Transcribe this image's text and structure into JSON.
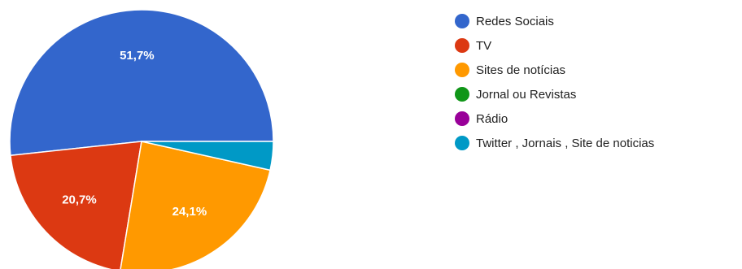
{
  "chart_data": {
    "type": "pie",
    "legend_position": "right",
    "slices": [
      {
        "label": "Redes Sociais",
        "value": 51.7,
        "value_label": "51,7%",
        "color": "#3366cc"
      },
      {
        "label": "TV",
        "value": 20.7,
        "value_label": "20,7%",
        "color": "#dc3912"
      },
      {
        "label": "Sites de notícias",
        "value": 24.1,
        "value_label": "24,1%",
        "color": "#ff9900"
      },
      {
        "label": "Jornal ou Revistas",
        "value": 0,
        "value_label": "",
        "color": "#109618"
      },
      {
        "label": "Rádio",
        "value": 0,
        "value_label": "",
        "color": "#990099"
      },
      {
        "label": "Twitter , Jornais , Site de noticias",
        "value": 3.5,
        "value_label": "",
        "color": "#0099c6"
      }
    ]
  }
}
